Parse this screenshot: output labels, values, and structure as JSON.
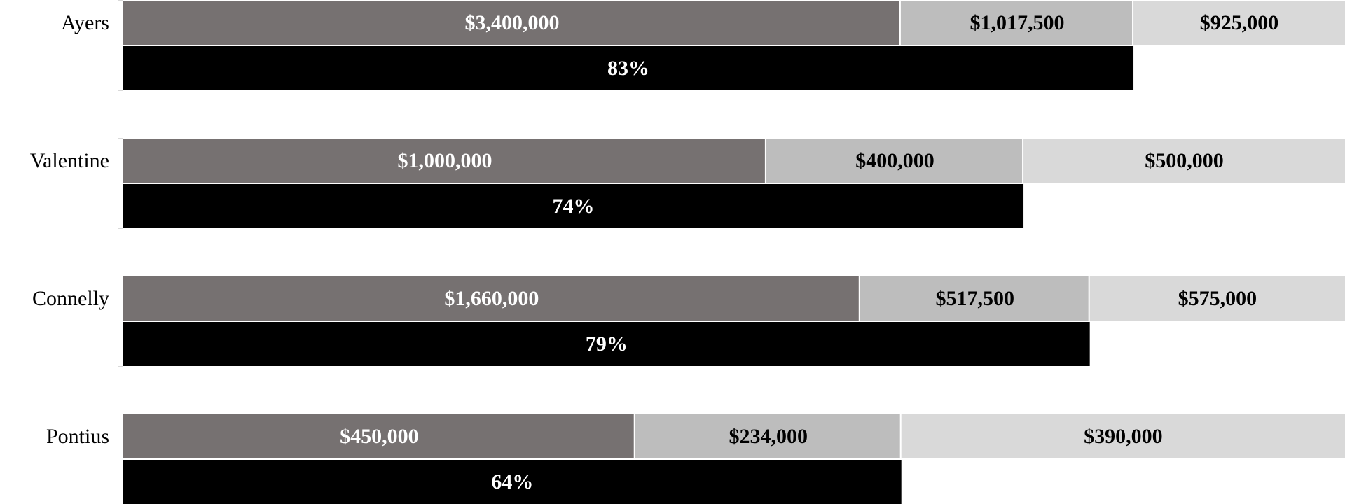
{
  "colors": {
    "segment_1": "#767171",
    "segment_2": "#bdbdbd",
    "segment_3": "#d9d9d9",
    "percent_bar": "#000000",
    "label_on_dark": "#ffffff",
    "label_on_light": "#000000",
    "axis": "#d9d9d9"
  },
  "chart_data": {
    "type": "bar",
    "orientation": "horizontal",
    "stacked": true,
    "legend": "none",
    "grid": false,
    "categories": [
      "Ayers",
      "Valentine",
      "Connelly",
      "Pontius"
    ],
    "segments": [
      {
        "values": [
          3400000,
          1000000,
          1660000,
          450000
        ],
        "labels": [
          "$3,400,000",
          "$1,000,000",
          "$1,660,000",
          "$450,000"
        ]
      },
      {
        "values": [
          1017500,
          400000,
          517500,
          234000
        ],
        "labels": [
          "$1,017,500",
          "$400,000",
          "$517,500",
          "$234,000"
        ]
      },
      {
        "values": [
          925000,
          500000,
          575000,
          390000
        ],
        "labels": [
          "$925,000",
          "$500,000",
          "$575,000",
          "$390,000"
        ]
      }
    ],
    "percent": {
      "values": [
        83,
        74,
        79,
        64
      ],
      "labels": [
        "83%",
        "74%",
        "79%",
        "64%"
      ]
    }
  }
}
